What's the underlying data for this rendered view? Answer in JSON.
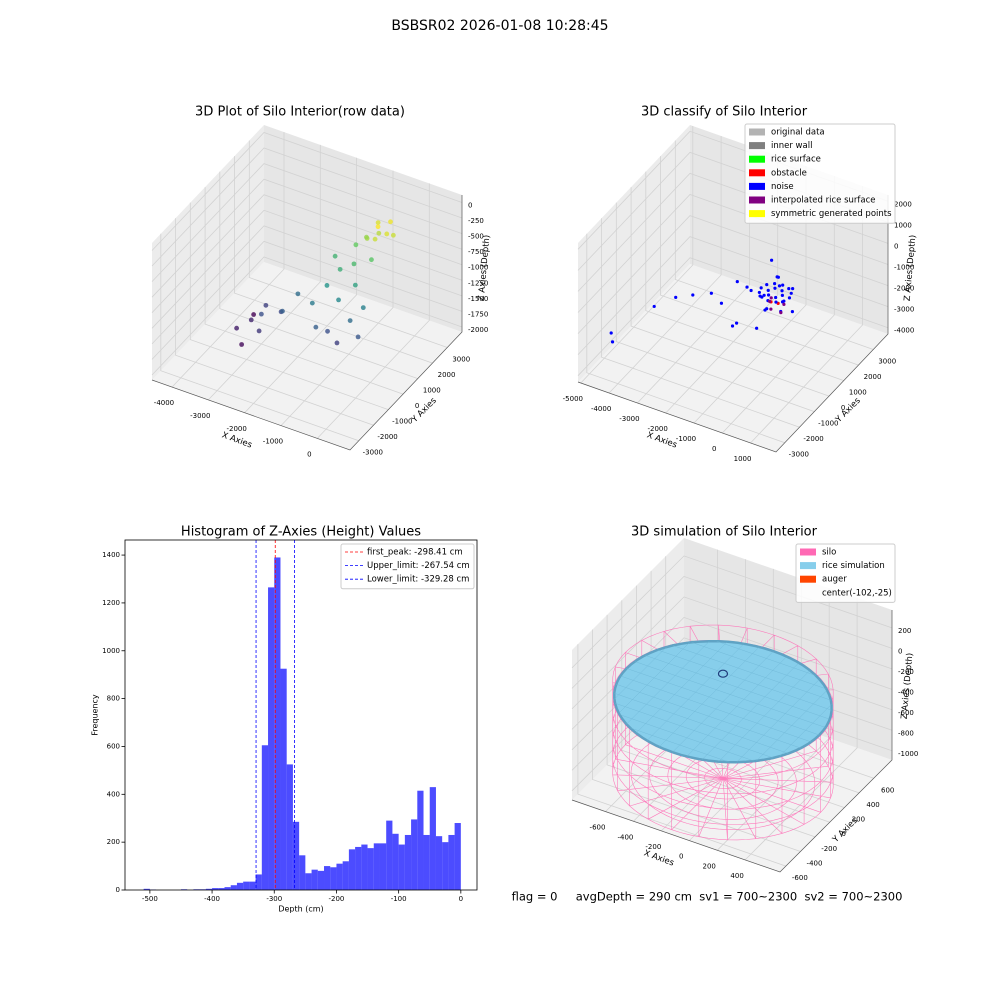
{
  "figure_title": "BSBSR02 2026-01-08 10:28:45",
  "footer": "flag = 0     avgDepth = 290 cm  sv1 = 700~2300  sv2 = 700~2300",
  "chart_data": [
    {
      "type": "scatter3d",
      "title": "3D Plot of Silo Interior(row data)",
      "xlabel": "X Axies",
      "ylabel": "Y Axies",
      "zlabel": "Z Axies (Depth)",
      "xlim": [
        -4550,
        900
      ],
      "ylim": [
        -3600,
        4000
      ],
      "zlim": [
        -2080,
        120
      ],
      "xticks": [
        -4000,
        -3000,
        -2000,
        -1000,
        0
      ],
      "yticks": [
        -3000,
        -2000,
        -1000,
        0,
        1000,
        2000,
        3000
      ],
      "zticks": [
        -2000,
        -1750,
        -1500,
        -1250,
        -1000,
        -750,
        -500,
        -250,
        0
      ],
      "colormap": "viridis",
      "x": [
        -3600,
        -3400,
        -3300,
        -3200,
        -3000,
        -2900,
        -2700,
        -2500,
        -2400,
        -3700,
        -1800,
        -1600,
        -1500,
        -1400,
        -1300,
        -1200,
        -1100,
        -1000,
        -900,
        -800,
        -700,
        -600,
        -500,
        -1700,
        -1250,
        -900,
        -700,
        -600,
        -400,
        -800,
        -500,
        -300,
        -1000,
        -600
      ],
      "y": [
        -200,
        300,
        -600,
        800,
        0,
        -400,
        600,
        200,
        1000,
        1200,
        500,
        1000,
        0,
        1400,
        300,
        800,
        1600,
        200,
        1200,
        600,
        1800,
        1000,
        400,
        1800,
        2100,
        2000,
        2300,
        1800,
        2100,
        2500,
        2600,
        2300,
        2200,
        2000
      ],
      "z": [
        -1900,
        -1850,
        -2000,
        -1700,
        -1600,
        -1750,
        -1650,
        -1500,
        -1400,
        -2050,
        -1300,
        -1100,
        -1500,
        -900,
        -1600,
        -1200,
        -800,
        -1700,
        -1000,
        -1400,
        -700,
        -1250,
        -1550,
        -850,
        -650,
        -450,
        -400,
        -350,
        -300,
        -300,
        -250,
        -350,
        -500,
        -200
      ]
    },
    {
      "type": "scatter3d",
      "title": "3D classify of Silo Interior",
      "xlabel": "X Axies",
      "ylabel": "Y Axies",
      "zlabel": "Z Axies (Depth)",
      "xlim": [
        -5100,
        1900
      ],
      "ylim": [
        -3600,
        4000
      ],
      "zlim": [
        -4300,
        2300
      ],
      "xticks": [
        -5000,
        -4000,
        -3000,
        -2000,
        -1000,
        0,
        1000
      ],
      "yticks": [
        -3000,
        -2000,
        -1000,
        0,
        1000,
        2000,
        3000
      ],
      "zticks": [
        -4000,
        -3000,
        -2000,
        -1000,
        0,
        1000,
        2000
      ],
      "legend": "upper right",
      "series": [
        {
          "name": "original data",
          "color": "#b3b3b3",
          "x": [],
          "y": [],
          "z": []
        },
        {
          "name": "inner wall",
          "color": "#808080",
          "x": [],
          "y": [],
          "z": []
        },
        {
          "name": "rice surface",
          "color": "#00ff00",
          "x": [],
          "y": [],
          "z": []
        },
        {
          "name": "obstacle",
          "color": "#ff0000",
          "x": [
            -100,
            100
          ],
          "y": [
            -100,
            0
          ],
          "z": [
            -700,
            -750
          ]
        },
        {
          "name": "noise",
          "color": "#0000ff",
          "x": [
            -4500,
            -4400,
            -3500,
            -3000,
            -2500,
            -2000,
            -1800,
            -1500,
            -1200,
            -1000,
            -800,
            -700,
            -500,
            -400,
            -300,
            -200,
            -100,
            0,
            100,
            200,
            300,
            400,
            500,
            -600,
            -900,
            500,
            433,
            250,
            0,
            -250,
            -433,
            -500,
            -433,
            -250,
            0,
            250,
            433,
            250,
            125,
            -125,
            -250,
            -125,
            125
          ],
          "y": [
            -2500,
            -2600,
            -1500,
            -1000,
            -800,
            -500,
            -200,
            300,
            -600,
            0,
            500,
            -300,
            200,
            -500,
            700,
            -200,
            400,
            -700,
            300,
            -100,
            600,
            -400,
            200,
            900,
            -900,
            0,
            250,
            433,
            500,
            433,
            250,
            0,
            -250,
            -433,
            -500,
            -433,
            -250,
            0,
            217,
            217,
            0,
            -217,
            -217
          ],
          "z": [
            -2500,
            -2800,
            -1500,
            -1200,
            -1000,
            -900,
            -1500,
            -700,
            -2000,
            -500,
            -1200,
            -300,
            -800,
            -1800,
            -200,
            -1000,
            100,
            -600,
            -900,
            200,
            -400,
            -700,
            -1100,
            300,
            -1500,
            -300,
            -300,
            -300,
            -300,
            -300,
            -300,
            -300,
            -300,
            -300,
            -300,
            -300,
            -300,
            -300,
            -300,
            -300,
            -300,
            -300,
            -300
          ]
        },
        {
          "name": "interpolated rice surface",
          "color": "#800080",
          "x": [
            -200,
            200,
            0,
            300,
            -300
          ],
          "y": [
            0,
            200,
            -300,
            -200,
            300
          ],
          "z": [
            -800,
            -900,
            -850,
            -950,
            -900
          ]
        },
        {
          "name": "symmetric generated points",
          "color": "#ffff00",
          "x": [],
          "y": [],
          "z": []
        }
      ]
    },
    {
      "type": "histogram",
      "title": "Histogram of Z-Axies (Height) Values",
      "xlabel": "Depth (cm)",
      "ylabel": "Frequency",
      "xlim": [
        -540,
        26
      ],
      "ylim": [
        0,
        1463
      ],
      "xticks": [
        -500,
        -400,
        -300,
        -200,
        -100,
        0
      ],
      "yticks": [
        0,
        200,
        400,
        600,
        800,
        1000,
        1200,
        1400
      ],
      "color": "#0000ff",
      "alpha": 0.7,
      "legend": "upper right",
      "bins": [
        -510,
        -500,
        -490,
        -480,
        -470,
        -460,
        -450,
        -440,
        -430,
        -420,
        -410,
        -400,
        -390,
        -380,
        -370,
        -360,
        -350,
        -340,
        -330,
        -320,
        -310,
        -300,
        -290,
        -280,
        -270,
        -260,
        -250,
        -240,
        -230,
        -220,
        -210,
        -200,
        -190,
        -180,
        -170,
        -160,
        -150,
        -140,
        -130,
        -120,
        -110,
        -100,
        -90,
        -80,
        -70,
        -60,
        -50,
        -40,
        -30,
        -20,
        -10,
        0
      ],
      "counts": [
        5,
        2,
        0,
        0,
        0,
        0,
        3,
        0,
        3,
        3,
        5,
        8,
        8,
        12,
        20,
        30,
        35,
        35,
        65,
        605,
        1265,
        1390,
        925,
        525,
        285,
        145,
        70,
        85,
        80,
        100,
        95,
        110,
        120,
        170,
        180,
        190,
        175,
        195,
        195,
        290,
        235,
        190,
        230,
        295,
        415,
        230,
        430,
        225,
        200,
        230,
        280
      ],
      "lines": [
        {
          "name": "first_peak: -298.41 cm",
          "value": -298.41,
          "color": "#ff0000"
        },
        {
          "name": "Upper_limit: -267.54 cm",
          "value": -267.54,
          "color": "#0000ff"
        },
        {
          "name": "Lower_limit: -329.28 cm",
          "value": -329.28,
          "color": "#0000ff"
        }
      ]
    },
    {
      "type": "cylinder3d",
      "title": "3D simulation of Silo Interior",
      "xlabel": "X Axies",
      "ylabel": "Y Axies",
      "zlabel": "Z Axies (Depth)",
      "xlim": [
        -840,
        650
      ],
      "ylim": [
        -680,
        850
      ],
      "zlim": [
        -1090,
        375
      ],
      "xticks": [
        -600,
        -400,
        -200,
        0,
        200,
        400
      ],
      "yticks": [
        -600,
        -400,
        -200,
        0,
        200,
        400,
        600
      ],
      "zticks": [
        -1000,
        -800,
        -600,
        -400,
        -200,
        0,
        200
      ],
      "silo": {
        "radius": 700,
        "bottom": -1000,
        "top": -100
      },
      "rice": {
        "radius": 690,
        "z": -250
      },
      "center": {
        "x": -102,
        "y": -25
      },
      "legend": [
        {
          "name": "silo",
          "color": "#ff69b4"
        },
        {
          "name": "rice simulation",
          "color": "#87ceeb"
        },
        {
          "name": "auger",
          "color": "#ff4500"
        },
        {
          "name": "center(-102,-25)"
        }
      ]
    }
  ]
}
